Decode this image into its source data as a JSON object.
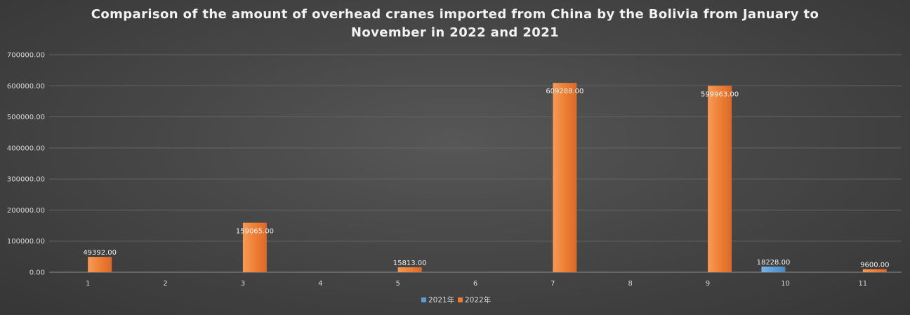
{
  "chart_data": {
    "type": "bar",
    "title_lines": [
      "Comparison of the amount of overhead cranes imported from China by the Bolivia from January to",
      "November in 2022 and 2021"
    ],
    "xlabel": "",
    "ylabel": "",
    "categories": [
      "1",
      "2",
      "3",
      "4",
      "5",
      "6",
      "7",
      "8",
      "9",
      "10",
      "11"
    ],
    "ylim": [
      0,
      700000
    ],
    "yticks": [
      0,
      100000,
      200000,
      300000,
      400000,
      500000,
      600000,
      700000
    ],
    "ytick_labels": [
      "0.00",
      "100000.00",
      "200000.00",
      "300000.00",
      "400000.00",
      "500000.00",
      "600000.00",
      "700000.00"
    ],
    "grid": true,
    "legend_position": "bottom",
    "series": [
      {
        "name": "2021年",
        "color": "#5b9bd5",
        "values": [
          null,
          null,
          null,
          null,
          null,
          null,
          null,
          null,
          null,
          18228.0,
          null
        ],
        "labels": [
          null,
          null,
          null,
          null,
          null,
          null,
          null,
          null,
          null,
          "18228.00",
          null
        ]
      },
      {
        "name": "2022年",
        "color": "#ed7d31",
        "values": [
          49392.0,
          null,
          159065.0,
          null,
          15813.0,
          null,
          609288.0,
          null,
          599963.0,
          null,
          9600.0
        ],
        "labels": [
          "49392.00",
          null,
          "159065.00",
          null,
          "15813.00",
          null,
          "609288.00",
          null,
          "599963.00",
          null,
          "9600.00"
        ]
      }
    ]
  }
}
